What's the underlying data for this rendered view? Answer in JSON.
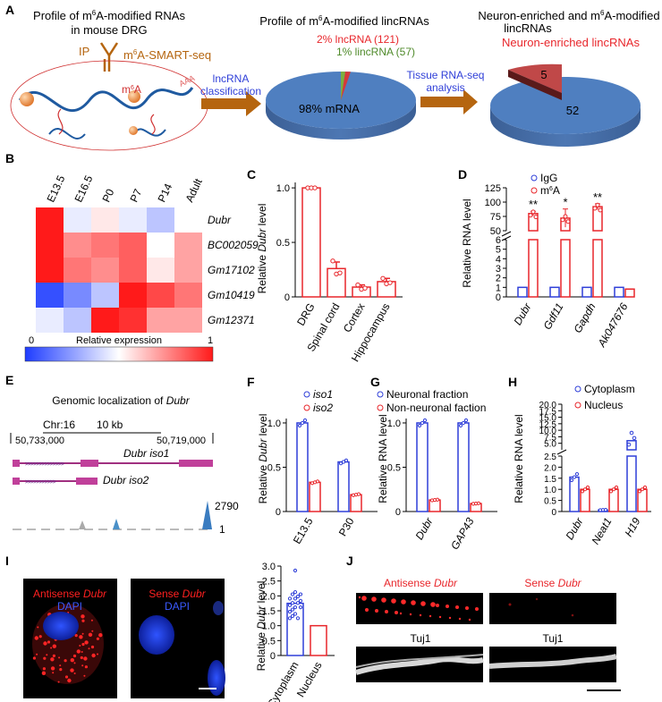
{
  "panels": [
    "A",
    "B",
    "C",
    "D",
    "E",
    "F",
    "G",
    "H",
    "I",
    "J"
  ],
  "panelA": {
    "left_title_1": "Profile of m",
    "left_title_sup": "6",
    "left_title_2": "A-modified RNAs",
    "left_title_line2": "in mouse DRG",
    "ip": "IP",
    "smartseq_pre": "m",
    "smartseq_sup": "6",
    "smartseq_post": "A-SMART-seq",
    "m6a_pre": "m",
    "m6a_sup": "6",
    "m6a_post": "A",
    "polyA": "AAA",
    "arrow1_line1": "lncRNA",
    "arrow1_line2": "classification",
    "mid_title_pre": "Profile of m",
    "mid_title_sup": "6",
    "mid_title_post": "A-modified lincRNAs",
    "pie1_lncrna": "2% lncRNA (121)",
    "pie1_lincrna": "1% lincRNA (57)",
    "pie1_mrna": "98% mRNA",
    "arrow2_line1": "Tissue RNA-seq",
    "arrow2_line2": "analysis",
    "right_title_pre": "Neuron-enriched and  m",
    "right_title_sup": "6",
    "right_title_post": "A-modified",
    "right_title_line2": "lincRNAs",
    "right_sub": "Neuron-enriched lincRNAs",
    "pie2_small": "5",
    "pie2_big": "52",
    "pie1_fractions": [
      0.98,
      0.02,
      0.01
    ],
    "pie2_values": [
      52,
      5
    ]
  },
  "panelB": {
    "columns": [
      "E13.5",
      "E16.5",
      "P0",
      "P7",
      "P14",
      "Adult"
    ],
    "rows": [
      "Dubr",
      "BC002059",
      "Gm17102",
      "Gm10419",
      "Gm12371"
    ],
    "matrix": [
      [
        1.0,
        0.45,
        0.55,
        0.45,
        0.35,
        0.5
      ],
      [
        1.0,
        0.75,
        0.8,
        0.85,
        0.5,
        0.7
      ],
      [
        1.0,
        0.8,
        0.75,
        0.85,
        0.55,
        0.7
      ],
      [
        0.05,
        0.2,
        0.35,
        1.0,
        0.9,
        0.8
      ],
      [
        0.45,
        0.35,
        1.0,
        0.95,
        0.7,
        0.7
      ]
    ],
    "scale_min": "0",
    "scale_label": "Relative expression",
    "scale_max": "1",
    "colors": {
      "low": "#1e3cff",
      "mid": "#ffffff",
      "high": "#ff1a1a"
    }
  },
  "panelC": {
    "ylabel_pre": "Relative ",
    "ylabel_gene": "Dubr",
    "ylabel_post": " level",
    "yticks": [
      "0",
      "0.5",
      "1.0"
    ],
    "chart_data": {
      "type": "bar",
      "categories": [
        "DRG",
        "Spinal cord",
        "Cortex",
        "Hippocampus"
      ],
      "values": [
        1.0,
        0.26,
        0.09,
        0.14
      ],
      "errors": [
        0,
        0.06,
        0.02,
        0.03
      ],
      "points": [
        [
          1.0,
          1.0,
          1.0
        ],
        [
          0.33,
          0.21,
          0.22
        ],
        [
          0.11,
          0.07,
          0.08
        ],
        [
          0.17,
          0.12,
          0.13
        ]
      ],
      "ylim": [
        0,
        1.05
      ],
      "color": "#e8262b"
    }
  },
  "panelD": {
    "ylabel": "Relative RNA level",
    "legend": [
      {
        "label": "IgG",
        "color": "#2f3fd8"
      },
      {
        "label_pre": "m",
        "label_sup": "6",
        "label_post": "A",
        "color": "#e8262b"
      }
    ],
    "yticks_upper": [
      "50",
      "75",
      "100",
      "125"
    ],
    "yticks_lower": [
      "0",
      "1",
      "2",
      "3",
      "4",
      "5",
      "6"
    ],
    "sig": [
      "**",
      "*",
      "**",
      ""
    ],
    "chart_data": {
      "type": "bar",
      "categories": [
        "Dubr",
        "Gdf11",
        "Gapdh",
        "Ak047676"
      ],
      "series": [
        {
          "name": "IgG",
          "values": [
            1.0,
            1.0,
            1.0,
            1.0
          ],
          "errors": [
            0.05,
            0.05,
            0.05,
            0.05
          ]
        },
        {
          "name": "m6A",
          "values": [
            80,
            72,
            92,
            0.82
          ],
          "errors": [
            4,
            16,
            5,
            0.06
          ]
        }
      ],
      "broken_axis": {
        "lower": [
          0,
          6
        ],
        "upper": [
          50,
          125
        ]
      }
    }
  },
  "panelE": {
    "title_pre": "Genomic localization of ",
    "title_gene": "Dubr",
    "chr": "Chr:16",
    "scale": "10 kb",
    "coord_left": "50,733,000",
    "coord_right": "50,719,000",
    "iso1": "Dubr iso1",
    "iso2": "Dubr iso2",
    "track_max": "2790",
    "track_min": "1"
  },
  "panelF": {
    "ylabel_pre": "Relative ",
    "ylabel_gene": "Dubr",
    "ylabel_post": " level",
    "yticks": [
      "0",
      "0.5",
      "1.0"
    ],
    "chart_data": {
      "type": "bar",
      "categories": [
        "E13.5",
        "P30"
      ],
      "series": [
        {
          "name": "iso1",
          "values": [
            1.0,
            0.56
          ]
        },
        {
          "name": "iso2",
          "values": [
            0.33,
            0.19
          ]
        }
      ],
      "ylim": [
        0,
        1.05
      ]
    }
  },
  "panelG": {
    "ylabel": "Relative RNA level",
    "yticks": [
      "0",
      "0.5",
      "1.0"
    ],
    "chart_data": {
      "type": "bar",
      "categories": [
        "Dubr",
        "GAP43"
      ],
      "series": [
        {
          "name": "Neuronal fraction",
          "values": [
            1.0,
            1.0
          ]
        },
        {
          "name": "Non-neuronal faction",
          "values": [
            0.13,
            0.09
          ]
        }
      ],
      "ylim": [
        0,
        1.05
      ]
    }
  },
  "panelH": {
    "ylabel": "Relative RNA level",
    "yticks_upper": [
      "5.0",
      "7.5",
      "10.0",
      "12.5",
      "15.0",
      "17.5",
      "20.0"
    ],
    "yticks_lower": [
      "0",
      "0.5",
      "1.0",
      "1.5",
      "2.0",
      "2.5"
    ],
    "chart_data": {
      "type": "bar",
      "categories": [
        "Dubr",
        "Neat1",
        "H19"
      ],
      "series": [
        {
          "name": "Cytoplasm",
          "values": [
            1.55,
            0.07,
            6.0
          ]
        },
        {
          "name": "Nucleus",
          "values": [
            1.0,
            1.0,
            1.0
          ]
        }
      ],
      "broken_axis": {
        "lower": [
          0,
          2.5
        ],
        "upper": [
          2.5,
          20
        ]
      }
    }
  },
  "panelI": {
    "antisense_pre": "Antisense ",
    "antisense_gene": "Dubr",
    "dapi": "DAPI",
    "sense_pre": "Sense ",
    "sense_gene": "Dubr",
    "dapi2": "DAPI",
    "ylabel_pre": "Relative ",
    "ylabel_gene": "Dubr",
    "ylabel_post": " level",
    "yticks": [
      "0",
      "0.5",
      "1.0",
      "1.5",
      "2.0",
      "2.5",
      "3.0"
    ],
    "chart_data": {
      "type": "bar",
      "categories": [
        "Cytoplasm",
        "Nucleus"
      ],
      "values": [
        1.75,
        1.0
      ],
      "ylim": [
        0,
        3.0
      ]
    }
  },
  "panelJ": {
    "antisense_pre": "Antisense ",
    "antisense_gene": "Dubr",
    "sense_pre": "Sense ",
    "sense_gene": "Dubr",
    "tuj1": "Tuj1",
    "tuj1b": "Tuj1"
  }
}
